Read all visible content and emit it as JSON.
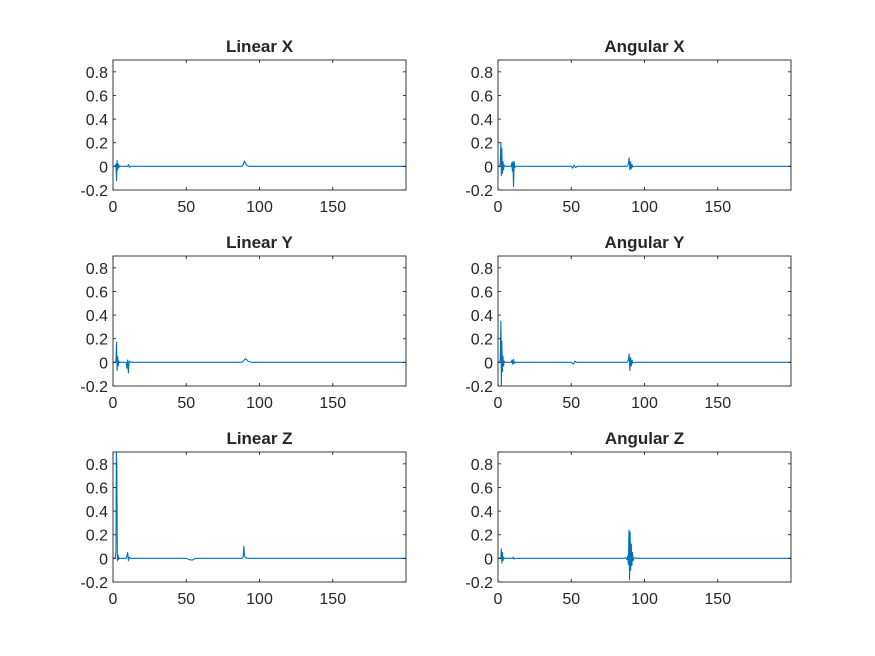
{
  "figure": {
    "background": "#ffffff",
    "axis_color": "#262626",
    "line_color": "#0072bd"
  },
  "chart_data": [
    {
      "type": "line",
      "title": "Linear X",
      "xlabel": "",
      "ylabel": "",
      "xlim": [
        0,
        200
      ],
      "ylim": [
        -0.2,
        0.9
      ],
      "xticks": [
        0,
        50,
        100,
        150
      ],
      "yticks": [
        -0.2,
        0,
        0.2,
        0.4,
        0.6,
        0.8
      ],
      "xtick_labels": [
        "0",
        "50",
        "100",
        "150"
      ],
      "ytick_labels": [
        "-0.2",
        "0",
        "0.2",
        "0.4",
        "0.6",
        "0.8"
      ],
      "grid": false,
      "box": true,
      "series": [
        {
          "values": {
            "x": [
              0,
              1.5,
              2,
              2.4,
              2.8,
              3.2,
              3.6,
              4.0,
              4.5,
              5,
              6,
              8,
              10,
              10.6,
              11.2,
              12,
              20,
              30,
              40,
              50,
              60,
              70,
              80,
              88,
              89,
              89.6,
              90.2,
              90.8,
              91.4,
              92,
              93,
              95,
              100,
              110,
              120,
              130,
              140,
              150,
              160,
              170,
              180,
              190,
              200
            ],
            "y": [
              0,
              0,
              0.02,
              -0.12,
              0.05,
              -0.03,
              0.02,
              -0.01,
              0.005,
              0,
              0,
              0,
              0,
              0.015,
              -0.008,
              0,
              0,
              0,
              0,
              0,
              0,
              0,
              0,
              0,
              0.015,
              0.045,
              0.03,
              0.02,
              0.01,
              0.005,
              0,
              0,
              0,
              0,
              0,
              0,
              0,
              0,
              0,
              0,
              0,
              0,
              0
            ]
          }
        }
      ]
    },
    {
      "type": "line",
      "title": "Angular X",
      "xlabel": "",
      "ylabel": "",
      "xlim": [
        0,
        200
      ],
      "ylim": [
        -0.2,
        0.9
      ],
      "xticks": [
        0,
        50,
        100,
        150
      ],
      "yticks": [
        -0.2,
        0,
        0.2,
        0.4,
        0.6,
        0.8
      ],
      "xtick_labels": [
        "0",
        "50",
        "100",
        "150"
      ],
      "ytick_labels": [
        "-0.2",
        "0",
        "0.2",
        "0.4",
        "0.6",
        "0.8"
      ],
      "grid": false,
      "box": true,
      "series": [
        {
          "values": {
            "x": [
              0,
              1,
              1.5,
              2,
              2.3,
              2.6,
              3,
              3.4,
              3.8,
              4.2,
              5,
              7,
              9,
              9.4,
              9.8,
              10.2,
              10.6,
              11,
              11.5,
              12,
              20,
              30,
              40,
              50,
              51,
              52,
              53,
              54,
              60,
              70,
              80,
              88,
              89,
              89.5,
              90,
              90.5,
              91,
              91.5,
              92,
              93,
              95,
              100,
              110,
              120,
              130,
              140,
              150,
              160,
              170,
              180,
              190,
              200
            ],
            "y": [
              0,
              0,
              0.02,
              0.2,
              -0.08,
              0.15,
              -0.06,
              0.04,
              -0.03,
              0.01,
              0,
              0,
              0,
              0.03,
              -0.04,
              0.04,
              -0.17,
              0.04,
              -0.01,
              0,
              0,
              0,
              0,
              0,
              -0.015,
              0.01,
              -0.01,
              0,
              0,
              0,
              0,
              0,
              0.02,
              0.07,
              -0.03,
              0.04,
              -0.02,
              0.015,
              -0.005,
              0,
              0,
              0,
              0,
              0,
              0,
              0,
              0,
              0,
              0,
              0,
              0,
              0
            ]
          }
        }
      ]
    },
    {
      "type": "line",
      "title": "Linear Y",
      "xlabel": "",
      "ylabel": "",
      "xlim": [
        0,
        200
      ],
      "ylim": [
        -0.2,
        0.9
      ],
      "xticks": [
        0,
        50,
        100,
        150
      ],
      "yticks": [
        -0.2,
        0,
        0.2,
        0.4,
        0.6,
        0.8
      ],
      "xtick_labels": [
        "0",
        "50",
        "100",
        "150"
      ],
      "ytick_labels": [
        "-0.2",
        "0",
        "0.2",
        "0.4",
        "0.6",
        "0.8"
      ],
      "grid": false,
      "box": true,
      "series": [
        {
          "values": {
            "x": [
              0,
              1.5,
              2,
              2.4,
              2.8,
              3.2,
              3.6,
              4.0,
              4.5,
              5,
              7,
              9,
              9.5,
              10,
              10.5,
              11,
              12,
              20,
              30,
              40,
              50,
              60,
              70,
              80,
              88,
              89,
              89.8,
              90.6,
              91.4,
              92.2,
              93,
              95,
              100,
              110,
              120,
              130,
              140,
              150,
              160,
              170,
              180,
              190,
              200
            ],
            "y": [
              0,
              0,
              0.01,
              0.17,
              -0.07,
              0.05,
              -0.03,
              0.01,
              0,
              0,
              0,
              0,
              -0.05,
              0.02,
              -0.09,
              0.01,
              0,
              0,
              0,
              0,
              0,
              0,
              0,
              0,
              0,
              0.01,
              0.025,
              0.03,
              0.02,
              0.01,
              0.005,
              0,
              0,
              0,
              0,
              0,
              0,
              0,
              0,
              0,
              0,
              0,
              0
            ]
          }
        }
      ]
    },
    {
      "type": "line",
      "title": "Angular Y",
      "xlabel": "",
      "ylabel": "",
      "xlim": [
        0,
        200
      ],
      "ylim": [
        -0.2,
        0.9
      ],
      "xticks": [
        0,
        50,
        100,
        150
      ],
      "yticks": [
        -0.2,
        0,
        0.2,
        0.4,
        0.6,
        0.8
      ],
      "xtick_labels": [
        "0",
        "50",
        "100",
        "150"
      ],
      "ytick_labels": [
        "-0.2",
        "0",
        "0.2",
        "0.4",
        "0.6",
        "0.8"
      ],
      "grid": false,
      "box": true,
      "series": [
        {
          "values": {
            "x": [
              0,
              1,
              1.5,
              2,
              2.3,
              2.6,
              3,
              3.4,
              3.8,
              4.2,
              5,
              7,
              9,
              9.5,
              10,
              10.5,
              11,
              11.5,
              12,
              20,
              30,
              40,
              50,
              51.5,
              52.5,
              53.5,
              60,
              70,
              80,
              88,
              89,
              89.5,
              90,
              90.5,
              91,
              91.5,
              92,
              93,
              95,
              100,
              110,
              120,
              130,
              140,
              150,
              160,
              170,
              180,
              190,
              200
            ],
            "y": [
              0,
              0,
              0.02,
              0.35,
              -0.2,
              0.18,
              -0.08,
              0.05,
              -0.03,
              0.01,
              0,
              0,
              0,
              0.02,
              -0.015,
              0.025,
              -0.01,
              0.005,
              0,
              0,
              0,
              0,
              0,
              -0.015,
              0.01,
              0,
              0,
              0,
              0,
              0,
              0.02,
              0.07,
              -0.07,
              0.04,
              -0.03,
              0.02,
              -0.005,
              0,
              0,
              0,
              0,
              0,
              0,
              0,
              0,
              0,
              0,
              0,
              0,
              0
            ]
          }
        }
      ]
    },
    {
      "type": "line",
      "title": "Linear Z",
      "xlabel": "",
      "ylabel": "",
      "xlim": [
        0,
        200
      ],
      "ylim": [
        -0.2,
        0.9
      ],
      "xticks": [
        0,
        50,
        100,
        150
      ],
      "yticks": [
        -0.2,
        0,
        0.2,
        0.4,
        0.6,
        0.8
      ],
      "xtick_labels": [
        "0",
        "50",
        "100",
        "150"
      ],
      "ytick_labels": [
        "-0.2",
        "0",
        "0.2",
        "0.4",
        "0.6",
        "0.8"
      ],
      "grid": false,
      "box": true,
      "series": [
        {
          "values": {
            "x": [
              0,
              1.5,
              2,
              2.3,
              2.6,
              3,
              3.4,
              3.8,
              4.2,
              5,
              7,
              9,
              9.5,
              10,
              10.5,
              11,
              12,
              20,
              30,
              40,
              50,
              52,
              54,
              56,
              60,
              70,
              80,
              88,
              88.8,
              89.3,
              89.8,
              90.3,
              91,
              92,
              95,
              100,
              110,
              120,
              130,
              140,
              150,
              160,
              170,
              180,
              190,
              200
            ],
            "y": [
              0,
              0,
              0.05,
              0.9,
              0.8,
              -0.02,
              0.03,
              -0.01,
              0.005,
              0,
              0,
              0,
              0.02,
              0.05,
              -0.02,
              0.01,
              0,
              0,
              0,
              0,
              0,
              -0.01,
              -0.015,
              0,
              0,
              0,
              0,
              0,
              0.01,
              0.1,
              0.02,
              0.01,
              0.005,
              0,
              0,
              0,
              0,
              0,
              0,
              0,
              0,
              0,
              0,
              0,
              0,
              0
            ]
          }
        }
      ]
    },
    {
      "type": "line",
      "title": "Angular Z",
      "xlabel": "",
      "ylabel": "",
      "xlim": [
        0,
        200
      ],
      "ylim": [
        -0.2,
        0.9
      ],
      "xticks": [
        0,
        50,
        100,
        150
      ],
      "yticks": [
        -0.2,
        0,
        0.2,
        0.4,
        0.6,
        0.8
      ],
      "xtick_labels": [
        "0",
        "50",
        "100",
        "150"
      ],
      "ytick_labels": [
        "-0.2",
        "0",
        "0.2",
        "0.4",
        "0.6",
        "0.8"
      ],
      "grid": false,
      "box": true,
      "series": [
        {
          "values": {
            "x": [
              0,
              1.5,
              2,
              2.3,
              2.6,
              3,
              3.4,
              3.8,
              4.2,
              5,
              8,
              10,
              10.5,
              11,
              12,
              20,
              30,
              40,
              50,
              60,
              70,
              80,
              86,
              87,
              88,
              88.5,
              89,
              89.4,
              89.8,
              90.2,
              90.6,
              91,
              91.4,
              91.8,
              92.2,
              93,
              95,
              100,
              110,
              120,
              130,
              140,
              150,
              160,
              170,
              180,
              190,
              200
            ],
            "y": [
              0,
              0,
              0.01,
              0.08,
              -0.04,
              0.05,
              -0.02,
              0.01,
              0,
              0,
              0,
              0,
              0.01,
              -0.005,
              0,
              0,
              0,
              0,
              0,
              0,
              0,
              0,
              0,
              0.005,
              -0.01,
              0.02,
              -0.05,
              0.24,
              -0.18,
              0.22,
              -0.1,
              0.12,
              -0.06,
              0.05,
              -0.02,
              0.005,
              0,
              0,
              0,
              0,
              0,
              0,
              0,
              0,
              0,
              0,
              0,
              0
            ]
          }
        }
      ]
    }
  ]
}
